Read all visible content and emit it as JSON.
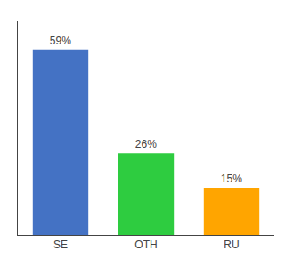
{
  "chart_data": {
    "type": "bar",
    "categories": [
      "SE",
      "OTH",
      "RU"
    ],
    "values": [
      59,
      26,
      15
    ],
    "value_labels": [
      "59%",
      "26%",
      "15%"
    ],
    "colors": [
      "#4472C4",
      "#2ECC40",
      "#FFA500"
    ],
    "ylim": [
      0,
      68
    ],
    "grid": false,
    "data_labels": true,
    "tick_labels": "x"
  }
}
